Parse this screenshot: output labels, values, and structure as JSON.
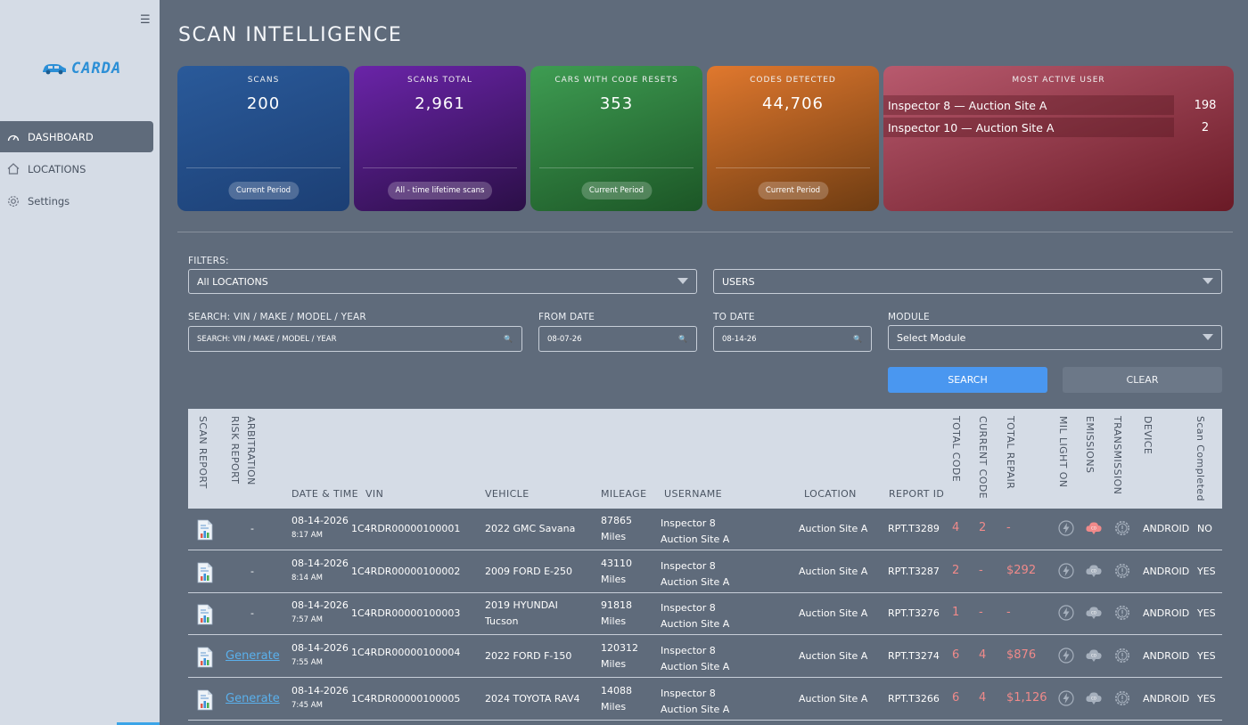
{
  "sidebar": {
    "menu_icon": "hamburger-icon",
    "logo_text": "CARDA",
    "items": [
      {
        "label": "DASHBOARD",
        "icon": "gauge-icon",
        "active": true
      },
      {
        "label": "LOCATIONS",
        "icon": "home-icon",
        "active": false
      },
      {
        "label": "Settings",
        "icon": "gear-icon",
        "active": false
      }
    ]
  },
  "page": {
    "title": "SCAN INTELLIGENCE"
  },
  "cards": [
    {
      "label": "SCANS",
      "value": "200",
      "pill": "Current Period"
    },
    {
      "label": "SCANS TOTAL",
      "value": "2,961",
      "pill": "All - time lifetime scans"
    },
    {
      "label": "CARS WITH CODE RESETS",
      "value": "353",
      "pill": "Current Period"
    },
    {
      "label": "CODES DETECTED",
      "value": "44,706",
      "pill": "Current Period"
    }
  ],
  "most_active_user": {
    "label": "MOST ACTIVE USER",
    "rows": [
      {
        "name": "Inspector 8 — Auction Site A",
        "count": "198"
      },
      {
        "name": "Inspector 10 — Auction Site A",
        "count": "2"
      }
    ]
  },
  "filters": {
    "heading": "FILTERS:",
    "locations_value": "All LOCATIONS",
    "users_value": "USERS",
    "search_label": "SEARCH: VIN / MAKE / MODEL / YEAR",
    "search_placeholder": "SEARCH: VIN / MAKE / MODEL / YEAR",
    "from_label": "FROM DATE",
    "from_value": "08-07-26",
    "to_label": "TO DATE",
    "to_value": "08-14-26",
    "module_label": "MODULE",
    "module_value": "Select Module",
    "search_button": "SEARCH",
    "clear_button": "CLEAR"
  },
  "table": {
    "headers": {
      "scan_report": "SCAN REPORT",
      "arb_line1": "ARBITRATION",
      "arb_line2": "RISK REPORT",
      "date_time": "DATE & TIME",
      "vin": "VIN",
      "vehicle": "VEHICLE",
      "mileage": "MILEAGE",
      "username": "USERNAME",
      "location": "LOCATION",
      "report_id": "REPORT ID",
      "total_code": "TOTAL CODE",
      "current_code": "CURRENT CODE",
      "total_repair": "TOTAL REPAIR",
      "mil_light": "MIL LIGHT ON",
      "emissions": "EMISSIONS",
      "transmission": "TRANSMISSION",
      "device": "DEVICE",
      "scan_completed": "Scan Completed"
    },
    "rows": [
      {
        "arb": "-",
        "date": "08-14-2026",
        "time": "8:17 AM",
        "vin": "1C4RDR00000100001",
        "vehicle_l1": "2022 GMC Savana",
        "vehicle_l2": "",
        "mileage": "87865",
        "mileage_unit": "Miles",
        "user_l1": "Inspector 8",
        "user_l2": "Auction Site A",
        "location": "Auction Site A",
        "report_id": "RPT.T3289",
        "total_code": "4",
        "current_code": "2",
        "total_repair": "-",
        "emissions_on": true,
        "device": "ANDROID",
        "completed": "NO"
      },
      {
        "arb": "-",
        "date": "08-14-2026",
        "time": "8:14 AM",
        "vin": "1C4RDR00000100002",
        "vehicle_l1": "2009 FORD E-250",
        "vehicle_l2": "",
        "mileage": "43110",
        "mileage_unit": "Miles",
        "user_l1": "Inspector 8",
        "user_l2": "Auction Site A",
        "location": "Auction Site A",
        "report_id": "RPT.T3287",
        "total_code": "2",
        "current_code": "-",
        "total_repair": "$292",
        "emissions_on": false,
        "device": "ANDROID",
        "completed": "YES"
      },
      {
        "arb": "-",
        "date": "08-14-2026",
        "time": "7:57 AM",
        "vin": "1C4RDR00000100003",
        "vehicle_l1": "2019 HYUNDAI",
        "vehicle_l2": "Tucson",
        "mileage": "91818",
        "mileage_unit": "Miles",
        "user_l1": "Inspector 8",
        "user_l2": "Auction Site A",
        "location": "Auction Site A",
        "report_id": "RPT.T3276",
        "total_code": "1",
        "current_code": "-",
        "total_repair": "-",
        "emissions_on": false,
        "device": "ANDROID",
        "completed": "YES"
      },
      {
        "arb": "Generate",
        "date": "08-14-2026",
        "time": "7:55 AM",
        "vin": "1C4RDR00000100004",
        "vehicle_l1": "2022 FORD F-150",
        "vehicle_l2": "",
        "mileage": "120312",
        "mileage_unit": "Miles",
        "user_l1": "Inspector 8",
        "user_l2": "Auction Site A",
        "location": "Auction Site A",
        "report_id": "RPT.T3274",
        "total_code": "6",
        "current_code": "4",
        "total_repair": "$876",
        "emissions_on": false,
        "device": "ANDROID",
        "completed": "YES"
      },
      {
        "arb": "Generate",
        "date": "08-14-2026",
        "time": "7:45 AM",
        "vin": "1C4RDR00000100005",
        "vehicle_l1": "2024 TOYOTA RAV4",
        "vehicle_l2": "",
        "mileage": "14088",
        "mileage_unit": "Miles",
        "user_l1": "Inspector 8",
        "user_l2": "Auction Site A",
        "location": "Auction Site A",
        "report_id": "RPT.T3266",
        "total_code": "6",
        "current_code": "4",
        "total_repair": "$1,126",
        "emissions_on": false,
        "device": "ANDROID",
        "completed": "YES"
      }
    ]
  },
  "colors": {
    "accent": "#4a97f0",
    "background": "#5f6b7b",
    "sidebar": "#d5dce6",
    "alert_red": "#f08a8a",
    "link": "#5ab0ec"
  }
}
